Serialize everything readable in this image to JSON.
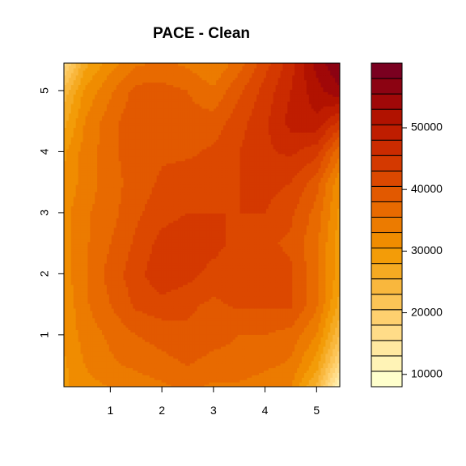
{
  "chart_data": {
    "type": "heatmap",
    "plot_style": "filled-contour",
    "title": "PACE - Clean",
    "xlim": [
      0.1,
      5.45
    ],
    "ylim": [
      0.15,
      5.45
    ],
    "x_ticks": [
      1,
      2,
      3,
      4,
      5
    ],
    "y_ticks": [
      1,
      2,
      3,
      4,
      5
    ],
    "legend": {
      "placement": "right",
      "levels_min": 8000,
      "levels_max": 58000,
      "levels_step": 2500,
      "tick_values": [
        10000,
        20000,
        30000,
        40000,
        50000
      ],
      "colors_low_to_high": [
        "#FFFFCC",
        "#FFF3B6",
        "#FFE8A0",
        "#FFDC88",
        "#FED06F",
        "#FCC456",
        "#F9B73D",
        "#F5AA22",
        "#F39C08",
        "#F08C00",
        "#EC7B00",
        "#E86A00",
        "#E25900",
        "#DC4800",
        "#D43900",
        "#CB2B00",
        "#BF1D00",
        "#B11200",
        "#A00808",
        "#8C0312",
        "#7A0020"
      ]
    },
    "grid": false,
    "field": {
      "x": [
        0.1,
        0.5,
        1.0,
        1.5,
        2.0,
        2.5,
        3.0,
        3.5,
        4.0,
        4.5,
        5.0,
        5.45
      ],
      "y": [
        0.15,
        0.5,
        1.0,
        1.5,
        2.0,
        2.5,
        3.0,
        3.5,
        4.0,
        4.5,
        5.0,
        5.45
      ],
      "z": [
        [
          30000,
          32000,
          33000,
          34000,
          35000,
          36000,
          35000,
          35000,
          34000,
          33000,
          25000,
          10000
        ],
        [
          30000,
          33000,
          35000,
          36000,
          37000,
          38000,
          37000,
          37000,
          36000,
          35000,
          29000,
          17000
        ],
        [
          31000,
          34000,
          36000,
          38000,
          39000,
          40000,
          39000,
          38000,
          38000,
          37000,
          33000,
          23000
        ],
        [
          31000,
          35000,
          38000,
          41000,
          42000,
          41000,
          40000,
          41000,
          41000,
          41000,
          36000,
          27000
        ],
        [
          32000,
          35000,
          39000,
          42000,
          45000,
          44000,
          42000,
          41000,
          42000,
          41000,
          36000,
          29000
        ],
        [
          32000,
          35000,
          38000,
          41000,
          44000,
          45000,
          44000,
          42000,
          41000,
          40000,
          36000,
          29000
        ],
        [
          32000,
          35000,
          37000,
          40000,
          42000,
          43000,
          43000,
          43000,
          43000,
          41000,
          37000,
          30000
        ],
        [
          31000,
          34000,
          37000,
          39000,
          41000,
          42000,
          42000,
          43000,
          44000,
          43000,
          39000,
          31000
        ],
        [
          30000,
          34000,
          37000,
          40000,
          40000,
          40000,
          41000,
          43000,
          45000,
          46000,
          44000,
          36000
        ],
        [
          27000,
          33000,
          37000,
          40000,
          40000,
          39000,
          39000,
          42000,
          45000,
          49000,
          50000,
          45000
        ],
        [
          24000,
          31000,
          35000,
          39000,
          39000,
          38000,
          36000,
          40000,
          44000,
          48000,
          52000,
          55000
        ],
        [
          17000,
          27000,
          32000,
          35000,
          36000,
          35000,
          33000,
          37000,
          42000,
          47000,
          54000,
          58000
        ]
      ]
    }
  }
}
